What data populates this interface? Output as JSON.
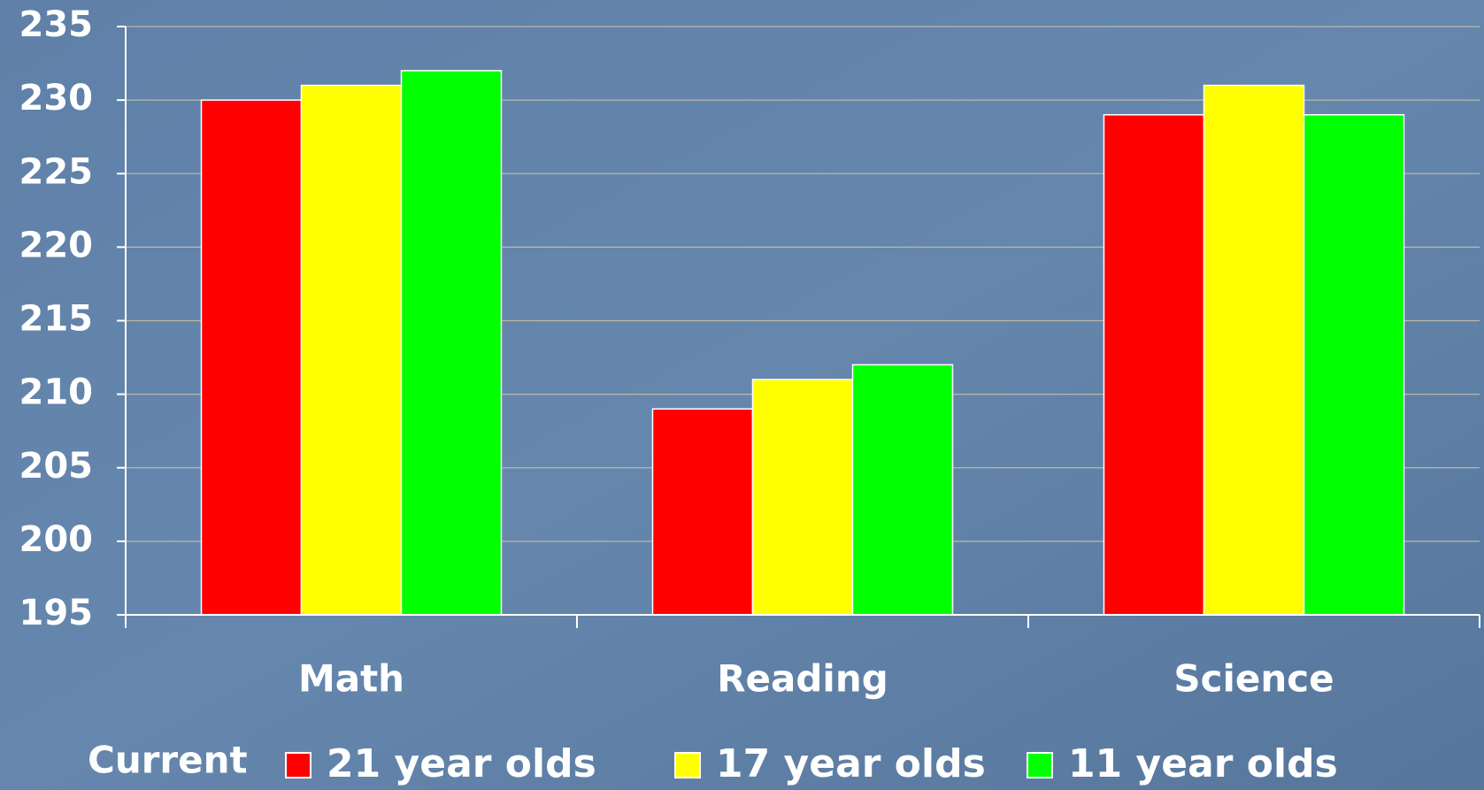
{
  "chart_data": {
    "type": "bar",
    "categories": [
      "Math",
      "Reading",
      "Science"
    ],
    "series": [
      {
        "name": "21 year olds",
        "color": "#ff0000",
        "values": [
          230,
          209,
          229
        ]
      },
      {
        "name": "17 year olds",
        "color": "#ffff00",
        "values": [
          231,
          211,
          231
        ]
      },
      {
        "name": "11 year olds",
        "color": "#00ff00",
        "values": [
          232,
          212,
          229
        ]
      }
    ],
    "legend_title": "Current",
    "legend": "bottom",
    "ylim": [
      195,
      235
    ],
    "yticks": [
      195,
      200,
      205,
      210,
      215,
      220,
      225,
      230,
      235
    ],
    "grid": true
  }
}
